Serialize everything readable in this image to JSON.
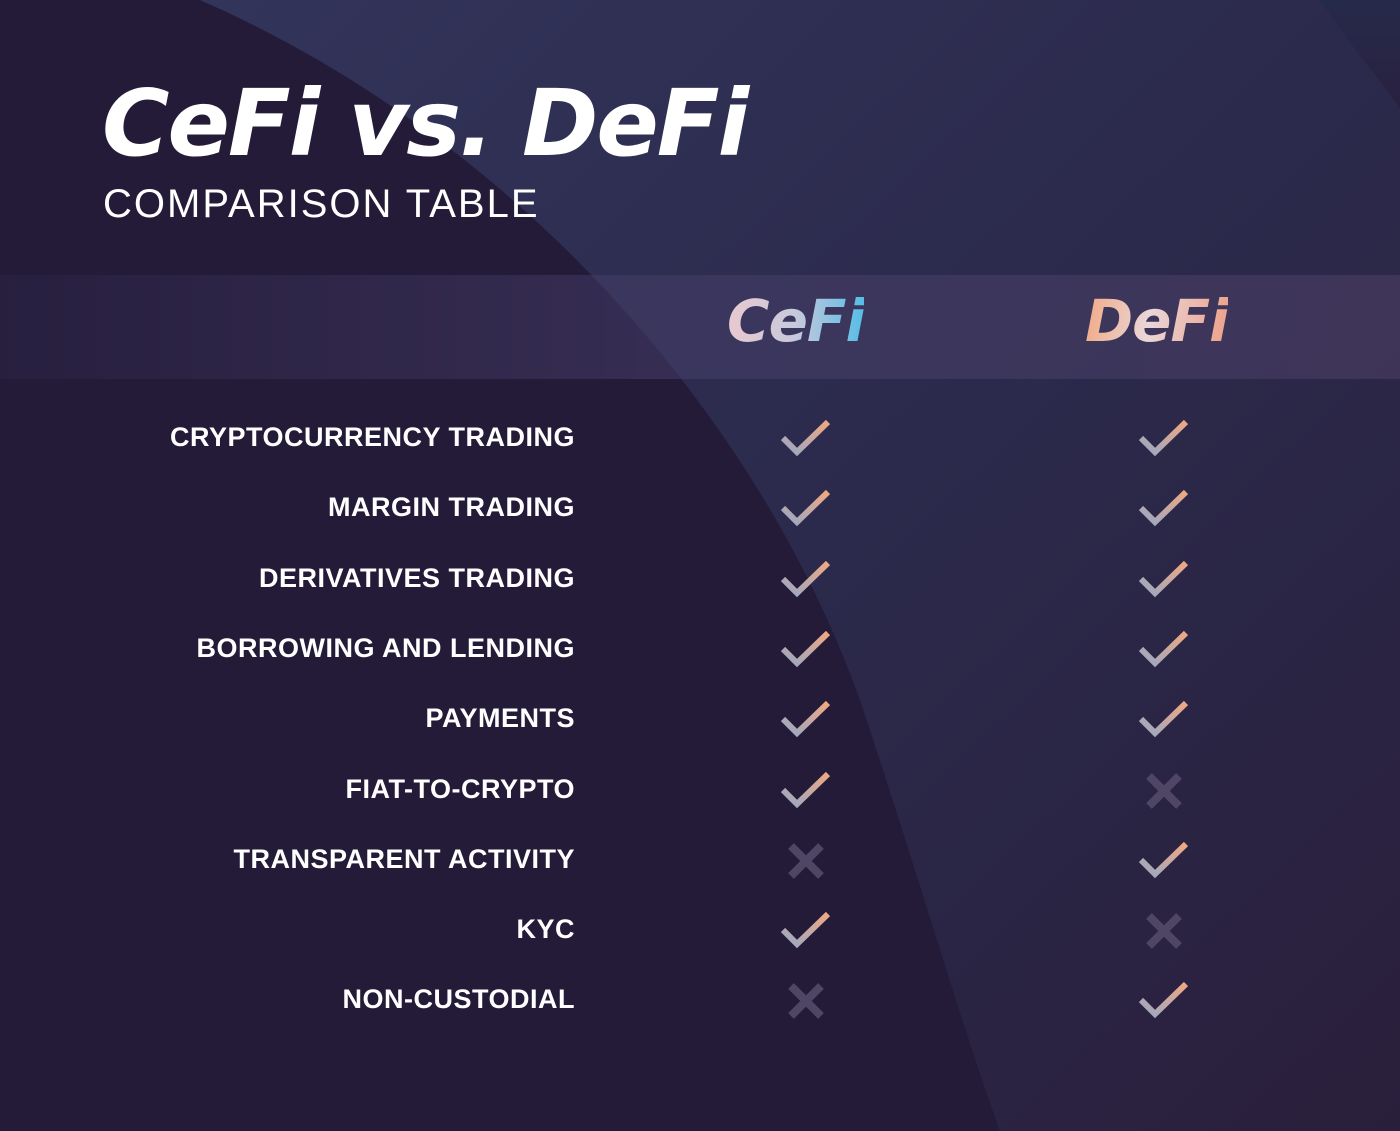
{
  "header": {
    "title": "CeFi vs. DeFi",
    "subtitle": "COMPARISON TABLE"
  },
  "columns": [
    {
      "label": "CeFi"
    },
    {
      "label": "DeFi"
    }
  ],
  "colors": {
    "background": "#241b39",
    "check_start": "#9aa8c4",
    "check_end": "#f0a882",
    "cross": "#4f4565",
    "cefi_accent": "#56bde6",
    "defi_accent": "#f2a882"
  },
  "rows": [
    {
      "label": "CRYPTOCURRENCY TRADING",
      "cefi": true,
      "defi": true
    },
    {
      "label": "MARGIN TRADING",
      "cefi": true,
      "defi": true
    },
    {
      "label": "DERIVATIVES TRADING",
      "cefi": true,
      "defi": true
    },
    {
      "label": "BORROWING AND LENDING",
      "cefi": true,
      "defi": true
    },
    {
      "label": "PAYMENTS",
      "cefi": true,
      "defi": true
    },
    {
      "label": "FIAT-TO-CRYPTO",
      "cefi": true,
      "defi": false
    },
    {
      "label": "TRANSPARENT ACTIVITY",
      "cefi": false,
      "defi": true
    },
    {
      "label": "KYC",
      "cefi": true,
      "defi": false
    },
    {
      "label": "NON-CUSTODIAL",
      "cefi": false,
      "defi": true
    }
  ]
}
